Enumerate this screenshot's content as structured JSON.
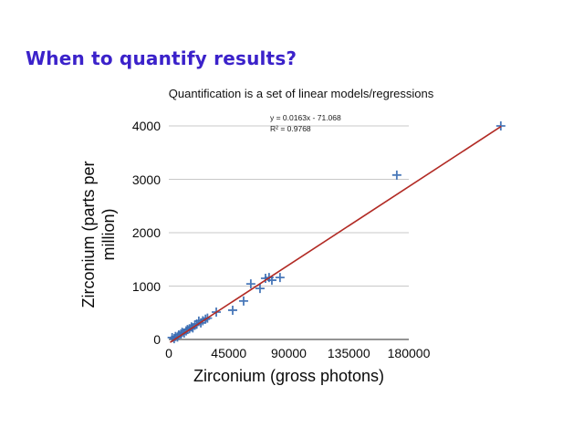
{
  "slide": {
    "title": "When to quantify results?",
    "title_color": "#3b22ca"
  },
  "chart_data": {
    "type": "scatter",
    "title": "Quantification is a set of linear models/regressions",
    "xlabel": "Zirconium (gross photons)",
    "ylabel": "Zirconium (parts per million)",
    "ylabel_lines": [
      "Zirconium (parts per",
      "million)"
    ],
    "x_ticks": [
      0,
      45000,
      90000,
      135000,
      180000
    ],
    "y_ticks": [
      0,
      1000,
      2000,
      3000,
      4000
    ],
    "xlim": [
      0,
      180000
    ],
    "ylim": [
      0,
      4000
    ],
    "grid": true,
    "legend": "none",
    "marker": "plus",
    "marker_color": "#3a6cb3",
    "grid_color": "#c8c8c8",
    "axis_color": "#555555",
    "points": [
      [
        2500,
        35
      ],
      [
        4000,
        15
      ],
      [
        5000,
        55
      ],
      [
        6500,
        45
      ],
      [
        7500,
        85
      ],
      [
        9000,
        100
      ],
      [
        10000,
        135
      ],
      [
        11500,
        120
      ],
      [
        13000,
        160
      ],
      [
        14000,
        185
      ],
      [
        15500,
        200
      ],
      [
        17000,
        235
      ],
      [
        18000,
        215
      ],
      [
        19500,
        265
      ],
      [
        21000,
        290
      ],
      [
        22500,
        345
      ],
      [
        24000,
        310
      ],
      [
        25500,
        350
      ],
      [
        27500,
        380
      ],
      [
        29000,
        400
      ],
      [
        35600,
        513
      ],
      [
        47900,
        548
      ],
      [
        56100,
        720
      ],
      [
        61500,
        1040
      ],
      [
        68400,
        955
      ],
      [
        72500,
        1145
      ],
      [
        75200,
        1160
      ],
      [
        77300,
        1110
      ],
      [
        83400,
        1160
      ],
      [
        171000,
        3080
      ],
      [
        249000,
        4000
      ]
    ],
    "trendline": {
      "label": "y = 0.0163x - 71.068",
      "r2_label": "R² = 0.9768",
      "slope": 0.0163,
      "intercept": -71.068,
      "color": "#b22b25",
      "x_start": 1000,
      "x_end": 249300
    }
  }
}
